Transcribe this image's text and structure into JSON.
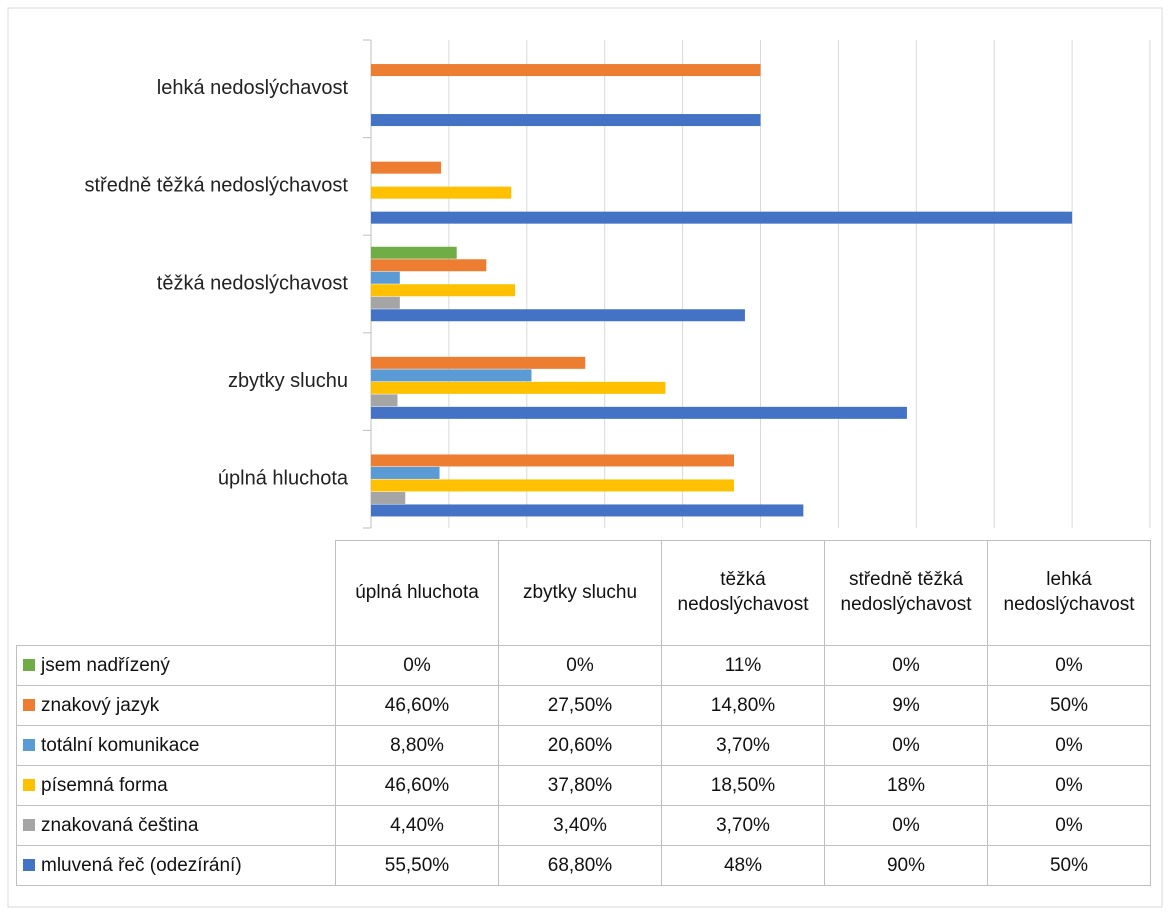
{
  "chart_data": {
    "type": "hbar",
    "categories": [
      "úplná hluchota",
      "zbytky sluchu",
      "těžká nedoslýchavost",
      "středně těžká nedoslýchavost",
      "lehká nedoslýchavost"
    ],
    "series": [
      {
        "name": "jsem nadřízený",
        "color": "#70ad47",
        "values": [
          0,
          0,
          11,
          0,
          0
        ],
        "value_labels": [
          "0%",
          "0%",
          "11%",
          "0%",
          "0%"
        ]
      },
      {
        "name": "znakový jazyk",
        "color": "#ed7d31",
        "values": [
          46.6,
          27.5,
          14.8,
          9,
          50
        ],
        "value_labels": [
          "46,60%",
          "27,50%",
          "14,80%",
          "9%",
          "50%"
        ]
      },
      {
        "name": "totální komunikace",
        "color": "#5b9bd5",
        "values": [
          8.8,
          20.6,
          3.7,
          0,
          0
        ],
        "value_labels": [
          "8,80%",
          "20,60%",
          "3,70%",
          "0%",
          "0%"
        ]
      },
      {
        "name": "písemná forma",
        "color": "#ffc000",
        "values": [
          46.6,
          37.8,
          18.5,
          18,
          0
        ],
        "value_labels": [
          "46,60%",
          "37,80%",
          "18,50%",
          "18%",
          "0%"
        ]
      },
      {
        "name": "znakovaná čeština",
        "color": "#a5a5a5",
        "values": [
          4.4,
          3.4,
          3.7,
          0,
          0
        ],
        "value_labels": [
          "4,40%",
          "3,40%",
          "3,70%",
          "0%",
          "0%"
        ]
      },
      {
        "name": "mluvená řeč (odezírání)",
        "color": "#4472c4",
        "values": [
          55.5,
          68.8,
          48,
          90,
          50
        ],
        "value_labels": [
          "55,50%",
          "68,80%",
          "48%",
          "90%",
          "50%"
        ]
      }
    ],
    "xlim": [
      0,
      100
    ],
    "xticks": [
      0,
      10,
      20,
      30,
      40,
      50,
      60,
      70,
      80,
      90,
      100
    ],
    "grid": true
  }
}
